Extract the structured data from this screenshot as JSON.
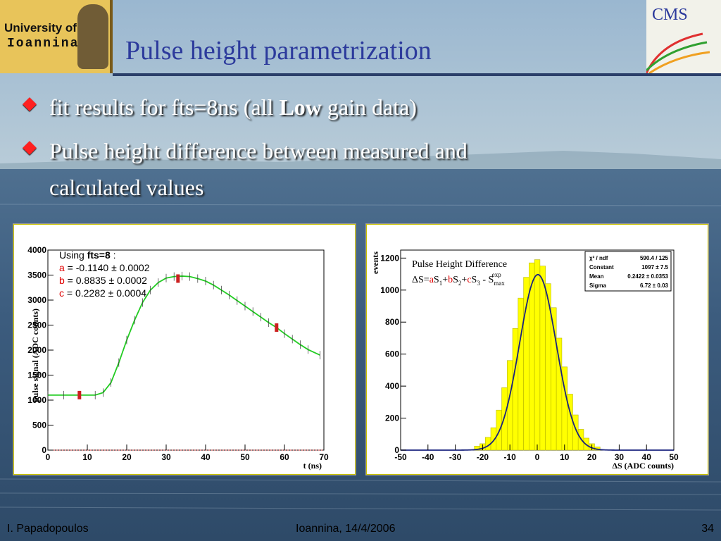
{
  "slide": {
    "title": "Pulse height parametrization",
    "bullets": [
      {
        "pre": "fit results for fts=8ns (all ",
        "bold": "Low",
        "post": " gain data)"
      },
      {
        "line1": "Pulse height difference between measured and",
        "line2": "calculated values"
      }
    ],
    "logo_left": {
      "line1": "University of",
      "line2": "Ioannina"
    },
    "logo_right": {
      "text": "CMS"
    },
    "footer": {
      "author": "I. Papadopoulos",
      "place_date": "Ioannina, 14/4/2006",
      "page": "34"
    }
  },
  "chart_data": [
    {
      "type": "line",
      "xlabel": "t (ns)",
      "ylabel": "pulse signal (ADC counts)",
      "xlim": [
        0,
        70
      ],
      "ylim": [
        0,
        4000
      ],
      "x_ticks": [
        0,
        10,
        20,
        30,
        40,
        50,
        60,
        70
      ],
      "y_ticks": [
        0,
        500,
        1000,
        1500,
        2000,
        2500,
        3000,
        3500,
        4000
      ],
      "legend": {
        "using_pre": "Using ",
        "using_bold": "fts=8",
        "using_post": " :",
        "params": [
          {
            "name": "a",
            "text": " = -0.1140 ± 0.0002"
          },
          {
            "name": "b",
            "text": " =  0.8835 ± 0.0002"
          },
          {
            "name": "c",
            "text": " =  0.2282 ±  0.0004"
          }
        ]
      },
      "series": [
        {
          "color": "#22cc22",
          "x": [
            0,
            4,
            8,
            12,
            14,
            16,
            18,
            20,
            22,
            24,
            26,
            28,
            30,
            32,
            34,
            36,
            38,
            40,
            42,
            44,
            46,
            48,
            50,
            52,
            54,
            56,
            58,
            60,
            62,
            64,
            66,
            69
          ],
          "y": [
            1100,
            1100,
            1100,
            1100,
            1150,
            1350,
            1750,
            2200,
            2600,
            2950,
            3200,
            3350,
            3440,
            3470,
            3480,
            3470,
            3430,
            3380,
            3300,
            3200,
            3100,
            2990,
            2880,
            2770,
            2660,
            2550,
            2450,
            2330,
            2220,
            2110,
            2010,
            1900
          ]
        }
      ],
      "measured_points": [
        {
          "x": 8,
          "y": 1100
        },
        {
          "x": 33,
          "y": 3430
        },
        {
          "x": 58,
          "y": 2450
        }
      ]
    },
    {
      "type": "bar",
      "xlabel": "ΔS (ADC counts)",
      "ylabel": "events",
      "xlim": [
        -50,
        50
      ],
      "ylim": [
        0,
        1250
      ],
      "x_ticks": [
        -50,
        -40,
        -30,
        -20,
        -10,
        0,
        10,
        20,
        30,
        40,
        50
      ],
      "y_ticks": [
        0,
        200,
        400,
        600,
        800,
        1000,
        1200
      ],
      "title": "Pulse Height Difference",
      "formula": "ΔS=aS1+bS2+cS3 - Smax(exp)",
      "stats": [
        {
          "label": "χ² / ndf",
          "value": "590.4 / 125"
        },
        {
          "label": "Constant",
          "value": "1097 ± 7.5"
        },
        {
          "label": "Mean",
          "value": "0.2422 ± 0.0353"
        },
        {
          "label": "Sigma",
          "value": "6.72 ± 0.03"
        }
      ],
      "fit": {
        "type": "gaussian",
        "constant": 1097,
        "mean": 0.2422,
        "sigma": 6.72
      },
      "bin_centers": [
        -22,
        -20,
        -18,
        -16,
        -14,
        -12,
        -10,
        -8,
        -6,
        -4,
        -2,
        0,
        2,
        4,
        6,
        8,
        10,
        12,
        14,
        16,
        18,
        20,
        22
      ],
      "values": [
        25,
        40,
        80,
        140,
        250,
        390,
        560,
        760,
        950,
        1080,
        1170,
        1190,
        1150,
        1040,
        890,
        700,
        520,
        350,
        220,
        130,
        75,
        40,
        20
      ],
      "colors": {
        "fill": "#ffff00",
        "outline": "#b8b800",
        "fit": "#1a237e"
      }
    }
  ]
}
